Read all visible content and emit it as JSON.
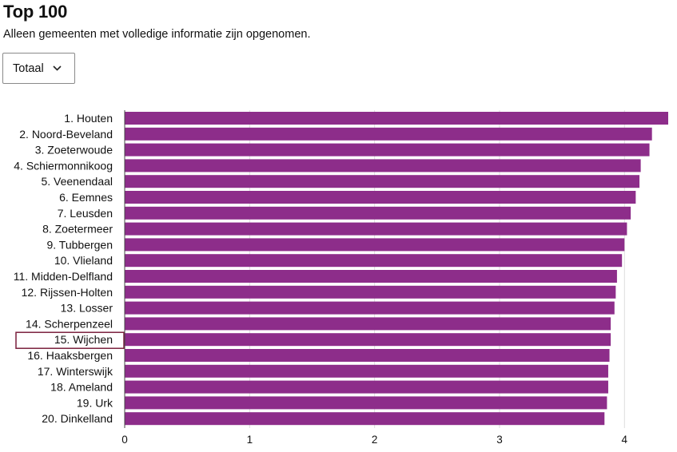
{
  "header": {
    "title": "Top 100",
    "subtitle": "Alleen gemeenten met volledige informatie zijn opgenomen."
  },
  "filter": {
    "selected": "Totaal",
    "icon": "chevron-down-icon"
  },
  "chart_data": {
    "type": "bar",
    "orientation": "horizontal",
    "categories": [
      "1. Houten",
      "2. Noord-Beveland",
      "3. Zoeterwoude",
      "4. Schiermonnikoog",
      "5. Veenendaal",
      "6. Eemnes",
      "7. Leusden",
      "8. Zoetermeer",
      "9. Tubbergen",
      "10. Vlieland",
      "11. Midden-Delfland",
      "12. Rijssen-Holten",
      "13. Losser",
      "14. Scherpenzeel",
      "15. Wijchen",
      "16. Haaksbergen",
      "17. Winterswijk",
      "18. Ameland",
      "19. Urk",
      "20. Dinkelland"
    ],
    "values": [
      4.35,
      4.22,
      4.2,
      4.13,
      4.12,
      4.09,
      4.05,
      4.02,
      4.0,
      3.98,
      3.94,
      3.93,
      3.92,
      3.89,
      3.89,
      3.88,
      3.87,
      3.87,
      3.86,
      3.84
    ],
    "xlim": [
      0,
      4.35
    ],
    "xticks": [
      0,
      1,
      2,
      3,
      4
    ],
    "bar_color": "#8d2d8a",
    "grid_color": "#dddddd",
    "highlight_index": 14,
    "highlight_color": "#7a1f3d",
    "grid": true
  }
}
